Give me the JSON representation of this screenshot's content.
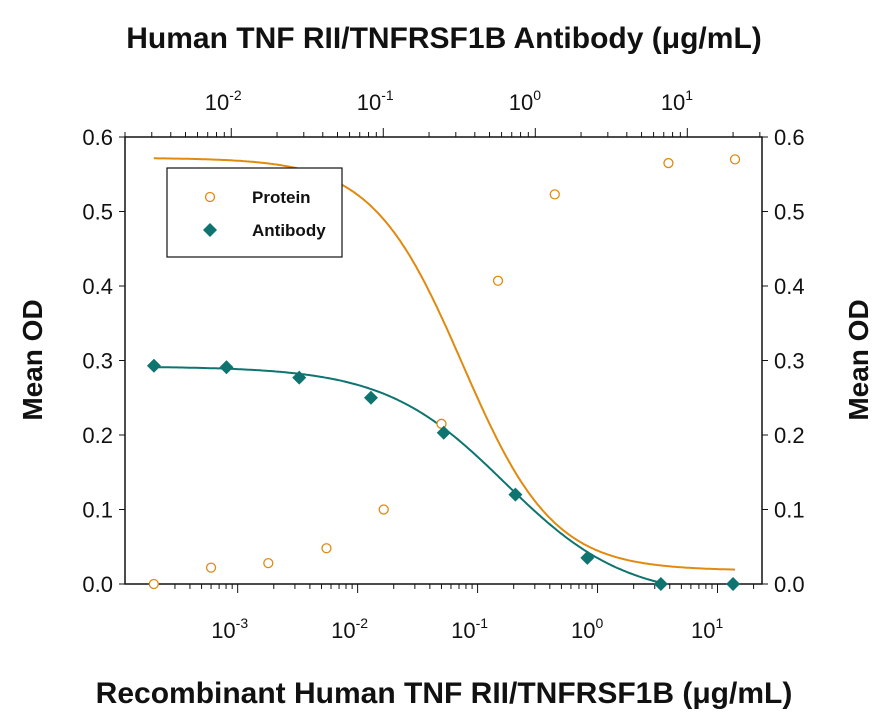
{
  "chart_data": {
    "type": "scatter",
    "title": "Human TNF RII/TNFRSF1B Antibody (μg/mL)",
    "xlabel": "Recombinant Human TNF RII/TNFRSF1B (μg/mL)",
    "ylabel_left": "Mean OD",
    "ylabel_right": "Mean OD",
    "x_bottom": {
      "scale": "log",
      "range": [
        0.000115,
        23.5
      ],
      "tick_labels": [
        "10^-3",
        "10^-2",
        "10^-1",
        "10^0",
        "10^1"
      ],
      "ticks": [
        -3,
        -2,
        -1,
        0,
        1
      ]
    },
    "x_top": {
      "scale": "log",
      "range": [
        0.002,
        31
      ],
      "tick_labels": [
        "10^-2",
        "10^-1",
        "10^0",
        "10^1"
      ],
      "ticks": [
        -2,
        -1,
        0,
        1
      ]
    },
    "ylim": [
      0,
      0.6
    ],
    "y_tick_labels": [
      "0.0",
      "0.1",
      "0.2",
      "0.3",
      "0.4",
      "0.5",
      "0.6"
    ],
    "grid": false,
    "legend_position": "top-left",
    "series": [
      {
        "name": "Protein",
        "axis": "bottom",
        "marker": "open-circle",
        "color": "#E08A10",
        "x": [
          0.0002,
          0.0006,
          0.0018,
          0.0055,
          0.0165,
          0.05,
          0.148,
          0.44,
          3.9,
          14
        ],
        "y": [
          0.0,
          0.022,
          0.028,
          0.048,
          0.1,
          0.215,
          0.407,
          0.523,
          0.565,
          0.57
        ],
        "fit": {
          "bottom": 0.018,
          "top": 0.572,
          "ec50": 0.075,
          "hill": 1.15
        }
      },
      {
        "name": "Antibody",
        "axis": "top",
        "marker": "filled-diamond",
        "color": "#0E7470",
        "x": [
          0.0031,
          0.0093,
          0.028,
          0.083,
          0.25,
          0.74,
          2.2,
          6.7,
          20
        ],
        "y": [
          0.293,
          0.291,
          0.277,
          0.25,
          0.203,
          0.12,
          0.035,
          0.0,
          0.0
        ],
        "fit": {
          "bottom": -0.02,
          "top": 0.292,
          "ec50": 0.63,
          "hill": 1.1
        }
      }
    ]
  }
}
